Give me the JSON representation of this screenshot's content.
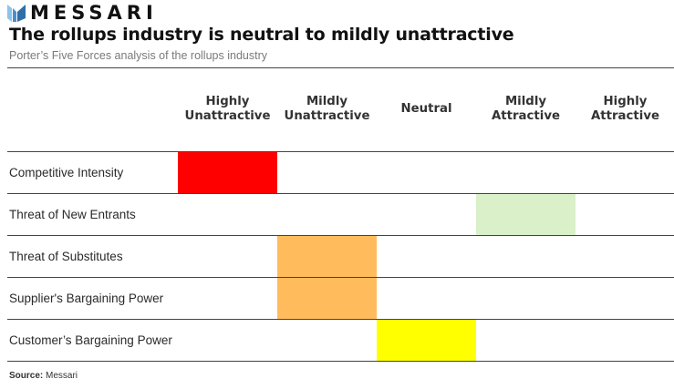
{
  "brand": {
    "name": "MESSARI",
    "icon": "messari-logo-icon",
    "color": "#4a90c8"
  },
  "title": "The rollups industry is neutral to mildly unattractive",
  "subtitle": "Porter’s Five Forces analysis of the rollups industry",
  "source": {
    "label": "Source:",
    "value": "Messari"
  },
  "chart_data": {
    "type": "table",
    "columns": [
      {
        "line1": "Highly",
        "line2": "Unattractive"
      },
      {
        "line1": "Mildly",
        "line2": "Unattractive"
      },
      {
        "line1": "Neutral",
        "line2": ""
      },
      {
        "line1": "Mildly",
        "line2": "Attractive"
      },
      {
        "line1": "Highly",
        "line2": "Attractive"
      }
    ],
    "rows": [
      {
        "label": "Competitive Intensity",
        "rating_index": 0
      },
      {
        "label": "Threat of New Entrants",
        "rating_index": 3
      },
      {
        "label": "Threat of Substitutes",
        "rating_index": 1
      },
      {
        "label": "Supplier's Bargaining Power",
        "rating_index": 1
      },
      {
        "label": "Customer’s Bargaining Power",
        "rating_index": 2
      }
    ],
    "colors": [
      "#ff0000",
      "#ffbb5c",
      "#ffff00",
      "#d9f0c8",
      "#8fd18a"
    ]
  }
}
